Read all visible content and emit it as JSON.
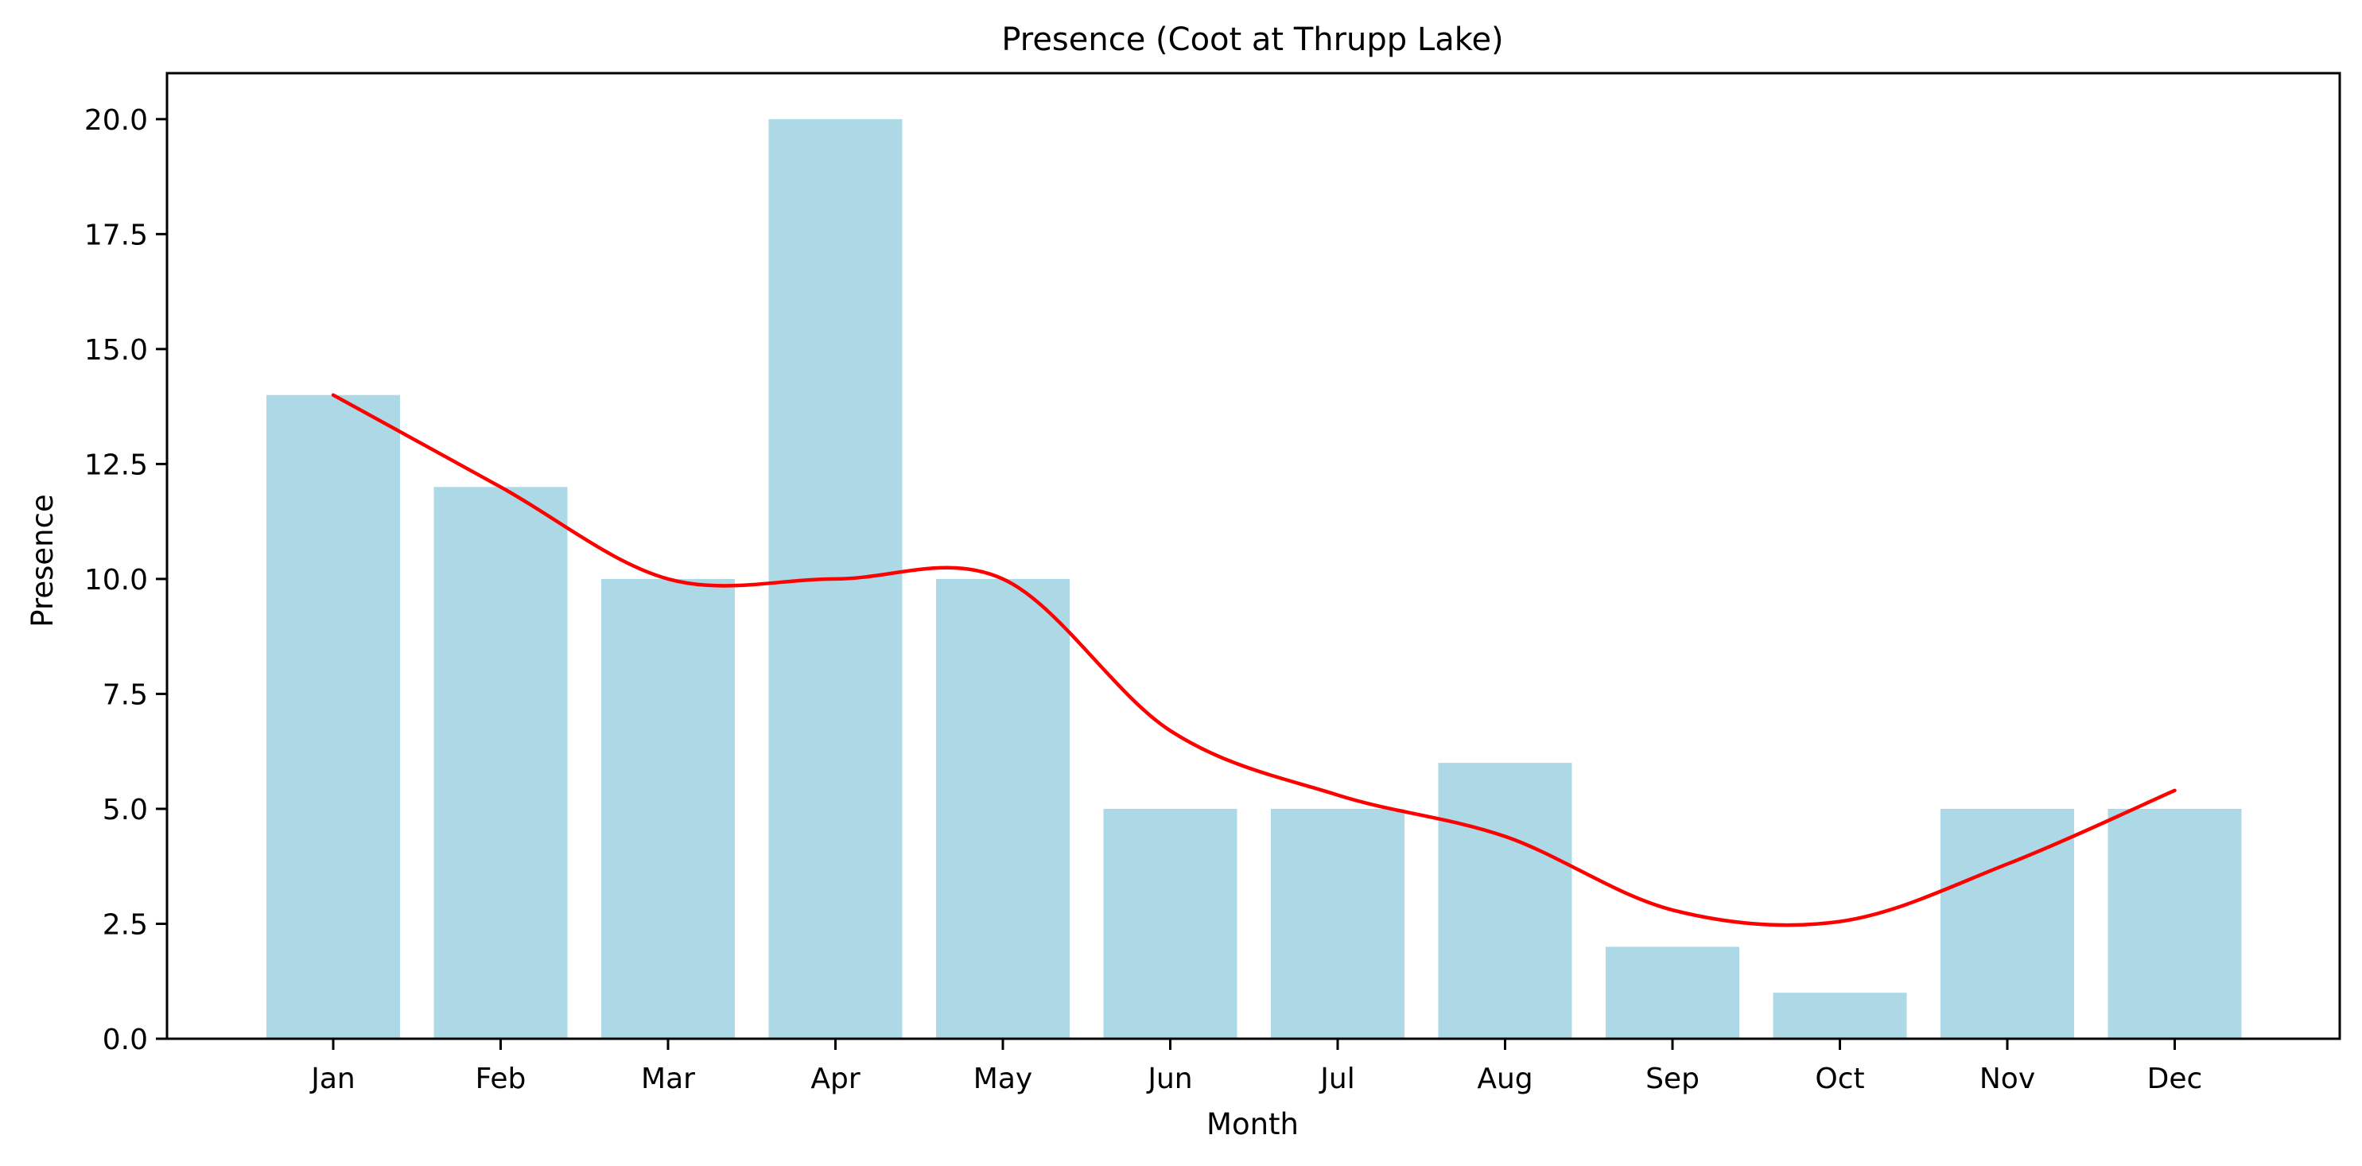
{
  "chart_data": {
    "type": "bar",
    "title": "Presence (Coot at Thrupp Lake)",
    "xlabel": "Month",
    "ylabel": "Presence",
    "categories": [
      "Jan",
      "Feb",
      "Mar",
      "Apr",
      "May",
      "Jun",
      "Jul",
      "Aug",
      "Sep",
      "Oct",
      "Nov",
      "Dec"
    ],
    "values": [
      14,
      12,
      10,
      20,
      10,
      5,
      5,
      6,
      2,
      1,
      5,
      5
    ],
    "trend": {
      "type": "line",
      "color": "#ff0000",
      "x": [
        "Jan",
        "Feb",
        "Mar",
        "Apr",
        "May",
        "Jun",
        "Jul",
        "Aug",
        "Sep",
        "Oct",
        "Nov",
        "Dec"
      ],
      "values": [
        14,
        12,
        10,
        10,
        10,
        6.7,
        5.3,
        4.4,
        2.8,
        2.55,
        3.8,
        5.4
      ]
    },
    "bar_color": "#add8e6",
    "ylim": [
      0,
      21
    ],
    "yticks": [
      "0.0",
      "2.5",
      "5.0",
      "7.5",
      "10.0",
      "12.5",
      "15.0",
      "17.5",
      "20.0"
    ],
    "grid": false,
    "legend": "none"
  }
}
